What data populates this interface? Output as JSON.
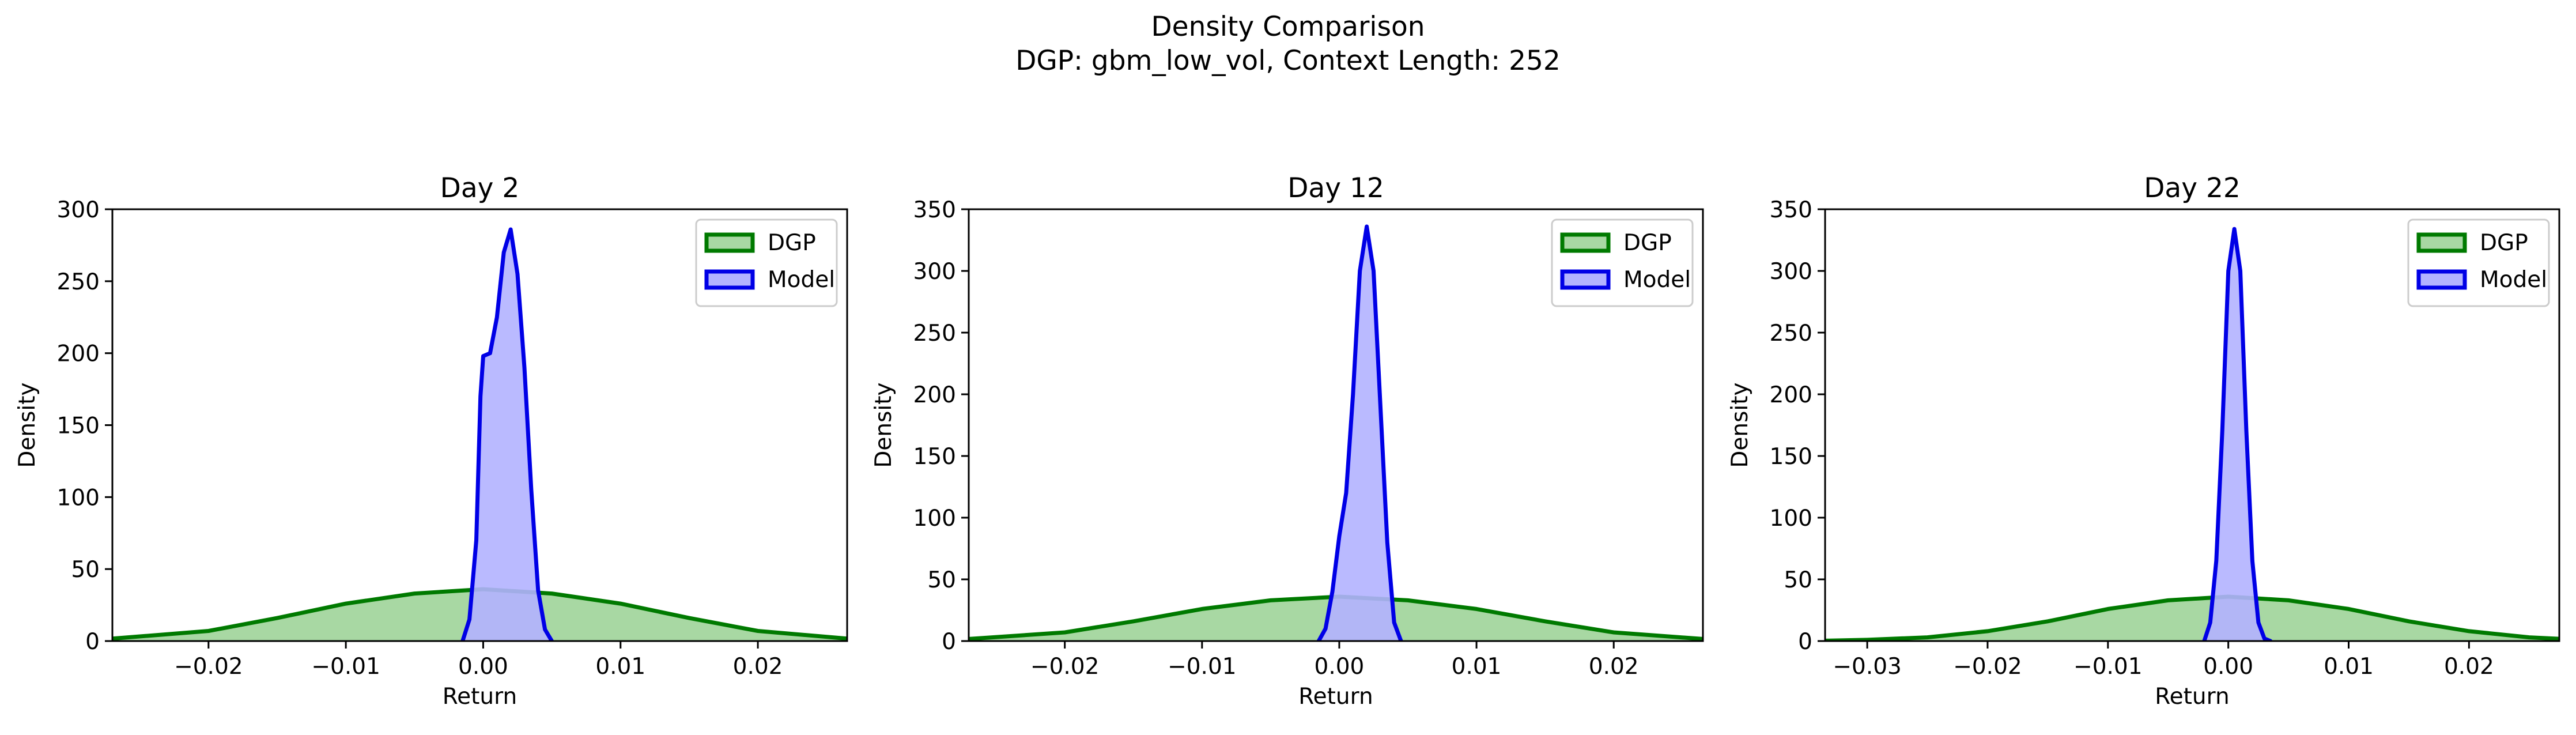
{
  "figure": {
    "title_line1": "Density Comparison",
    "title_line2": "DGP: gbm_low_vol, Context Length: 252"
  },
  "colors": {
    "dgp_line": "#007a00",
    "dgp_fill": "#a8d8a3",
    "model_line": "#0000e6",
    "model_fill": "#b3b3ff"
  },
  "chart_data": [
    {
      "type": "area",
      "title": "Day 2",
      "xlabel": "Return",
      "ylabel": "Density",
      "xlim": [
        -0.027,
        0.0265
      ],
      "ylim": [
        0,
        300
      ],
      "xticks": [
        -0.02,
        -0.01,
        0.0,
        0.01,
        0.02
      ],
      "xtick_labels": [
        "−0.02",
        "−0.01",
        "0.00",
        "0.01",
        "0.02"
      ],
      "yticks": [
        0,
        50,
        100,
        150,
        200,
        250,
        300
      ],
      "ytick_labels": [
        "0",
        "50",
        "100",
        "150",
        "200",
        "250",
        "300"
      ],
      "legend_position": "top-right",
      "series": [
        {
          "name": "DGP",
          "kind": "dgp",
          "x": [
            -0.027,
            -0.02,
            -0.015,
            -0.01,
            -0.005,
            0.0,
            0.005,
            0.01,
            0.015,
            0.02,
            0.0265
          ],
          "y": [
            1.7,
            7,
            16,
            26,
            33,
            36,
            33,
            26,
            16,
            7,
            1.7
          ]
        },
        {
          "name": "Model",
          "kind": "model",
          "x": [
            -0.0015,
            -0.001,
            -0.0005,
            -0.0002,
            0.0,
            0.0005,
            0.001,
            0.0015,
            0.002,
            0.0025,
            0.003,
            0.0035,
            0.004,
            0.0045,
            0.005
          ],
          "y": [
            0,
            15,
            70,
            170,
            198,
            200,
            225,
            270,
            286,
            255,
            190,
            105,
            35,
            8,
            0
          ]
        }
      ]
    },
    {
      "type": "area",
      "title": "Day 12",
      "xlabel": "Return",
      "ylabel": "Density",
      "xlim": [
        -0.027,
        0.0265
      ],
      "ylim": [
        0,
        350
      ],
      "xticks": [
        -0.02,
        -0.01,
        0.0,
        0.01,
        0.02
      ],
      "xtick_labels": [
        "−0.02",
        "−0.01",
        "0.00",
        "0.01",
        "0.02"
      ],
      "yticks": [
        0,
        50,
        100,
        150,
        200,
        250,
        300,
        350
      ],
      "ytick_labels": [
        "0",
        "50",
        "100",
        "150",
        "200",
        "250",
        "300",
        "350"
      ],
      "legend_position": "top-right",
      "series": [
        {
          "name": "DGP",
          "kind": "dgp",
          "x": [
            -0.027,
            -0.02,
            -0.015,
            -0.01,
            -0.005,
            0.0,
            0.005,
            0.01,
            0.015,
            0.02,
            0.0265
          ],
          "y": [
            1.7,
            7,
            16,
            26,
            33,
            36,
            33,
            26,
            16,
            7,
            1.7
          ]
        },
        {
          "name": "Model",
          "kind": "model",
          "x": [
            -0.0015,
            -0.001,
            -0.0005,
            0.0,
            0.0005,
            0.001,
            0.0015,
            0.002,
            0.0025,
            0.003,
            0.0035,
            0.004,
            0.0045
          ],
          "y": [
            0,
            10,
            40,
            85,
            120,
            200,
            300,
            336,
            300,
            190,
            80,
            15,
            0
          ]
        }
      ]
    },
    {
      "type": "area",
      "title": "Day 22",
      "xlabel": "Return",
      "ylabel": "Density",
      "xlim": [
        -0.0335,
        0.0275
      ],
      "ylim": [
        0,
        350
      ],
      "xticks": [
        -0.03,
        -0.02,
        -0.01,
        0.0,
        0.01,
        0.02
      ],
      "xtick_labels": [
        "−0.03",
        "−0.02",
        "−0.01",
        "0.00",
        "0.01",
        "0.02"
      ],
      "yticks": [
        0,
        50,
        100,
        150,
        200,
        250,
        300,
        350
      ],
      "ytick_labels": [
        "0",
        "50",
        "100",
        "150",
        "200",
        "250",
        "300",
        "350"
      ],
      "legend_position": "top-right",
      "series": [
        {
          "name": "DGP",
          "kind": "dgp",
          "x": [
            -0.0335,
            -0.03,
            -0.025,
            -0.02,
            -0.015,
            -0.01,
            -0.005,
            0.0,
            0.005,
            0.01,
            0.015,
            0.02,
            0.025,
            0.0275
          ],
          "y": [
            0.3,
            1,
            3,
            8,
            16,
            26,
            33,
            36,
            33,
            26,
            16,
            8,
            3,
            1.8
          ]
        },
        {
          "name": "Model",
          "kind": "model",
          "x": [
            -0.002,
            -0.0015,
            -0.001,
            -0.0005,
            0.0,
            0.0005,
            0.001,
            0.0015,
            0.002,
            0.0025,
            0.003,
            0.0035
          ],
          "y": [
            0,
            15,
            65,
            170,
            300,
            334,
            300,
            170,
            65,
            15,
            2,
            0
          ]
        }
      ]
    }
  ]
}
